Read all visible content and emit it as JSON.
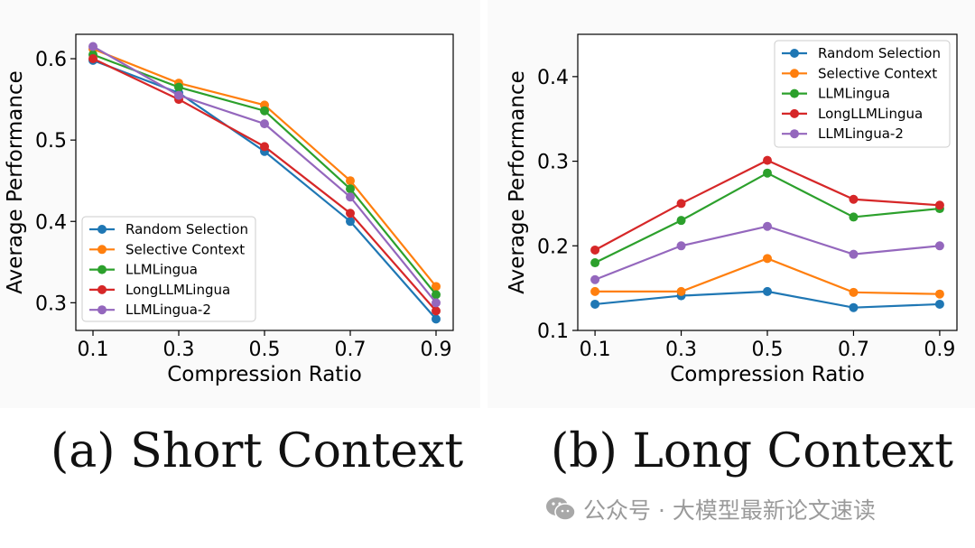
{
  "chart_data": [
    {
      "type": "line",
      "panel": "a",
      "caption": "(a) Short Context",
      "xlabel": "Compression Ratio",
      "ylabel": "Average Performance",
      "x": [
        0.1,
        0.3,
        0.5,
        0.7,
        0.9
      ],
      "x_tick_labels": [
        "0.1",
        "0.3",
        "0.5",
        "0.7",
        "0.9"
      ],
      "xlim": [
        0.06,
        0.94
      ],
      "ylim": [
        0.266,
        0.63
      ],
      "yticks": [
        0.3,
        0.4,
        0.5,
        0.6
      ],
      "y_tick_labels": [
        "0.3",
        "0.4",
        "0.5",
        "0.6"
      ],
      "legend_position": "lower-left",
      "series": [
        {
          "name": "Random Selection",
          "color": "#1f77b4",
          "values": [
            0.598,
            0.558,
            0.486,
            0.4,
            0.28
          ]
        },
        {
          "name": "Selective Context",
          "color": "#ff7f0e",
          "values": [
            0.612,
            0.57,
            0.543,
            0.45,
            0.32
          ]
        },
        {
          "name": "LLMLingua",
          "color": "#2ca02c",
          "values": [
            0.605,
            0.565,
            0.536,
            0.44,
            0.31
          ]
        },
        {
          "name": "LongLLMLingua",
          "color": "#d62728",
          "values": [
            0.6,
            0.55,
            0.492,
            0.41,
            0.29
          ]
        },
        {
          "name": "LLMLingua-2",
          "color": "#9467bd",
          "values": [
            0.615,
            0.555,
            0.52,
            0.43,
            0.3
          ]
        }
      ]
    },
    {
      "type": "line",
      "panel": "b",
      "caption": "(b) Long Context",
      "xlabel": "Compression Ratio",
      "ylabel": "Average Performance",
      "x": [
        0.1,
        0.3,
        0.5,
        0.7,
        0.9
      ],
      "x_tick_labels": [
        "0.1",
        "0.3",
        "0.5",
        "0.7",
        "0.9"
      ],
      "xlim": [
        0.06,
        0.94
      ],
      "ylim": [
        0.1,
        0.45
      ],
      "yticks": [
        0.1,
        0.2,
        0.3,
        0.4
      ],
      "y_tick_labels": [
        "0.1",
        "0.2",
        "0.3",
        "0.4"
      ],
      "legend_position": "upper-right",
      "series": [
        {
          "name": "Random Selection",
          "color": "#1f77b4",
          "values": [
            0.131,
            0.141,
            0.146,
            0.127,
            0.131
          ]
        },
        {
          "name": "Selective Context",
          "color": "#ff7f0e",
          "values": [
            0.146,
            0.146,
            0.185,
            0.145,
            0.143
          ]
        },
        {
          "name": "LLMLingua",
          "color": "#2ca02c",
          "values": [
            0.18,
            0.23,
            0.286,
            0.234,
            0.244
          ]
        },
        {
          "name": "LongLLMLingua",
          "color": "#d62728",
          "values": [
            0.195,
            0.25,
            0.301,
            0.255,
            0.248
          ]
        },
        {
          "name": "LLMLingua-2",
          "color": "#9467bd",
          "values": [
            0.16,
            0.2,
            0.223,
            0.19,
            0.2
          ]
        }
      ]
    }
  ],
  "watermark": {
    "icon": "wechat-icon",
    "text": "公众号 · 大模型最新论文速读",
    "color": "#9a9a9a"
  }
}
